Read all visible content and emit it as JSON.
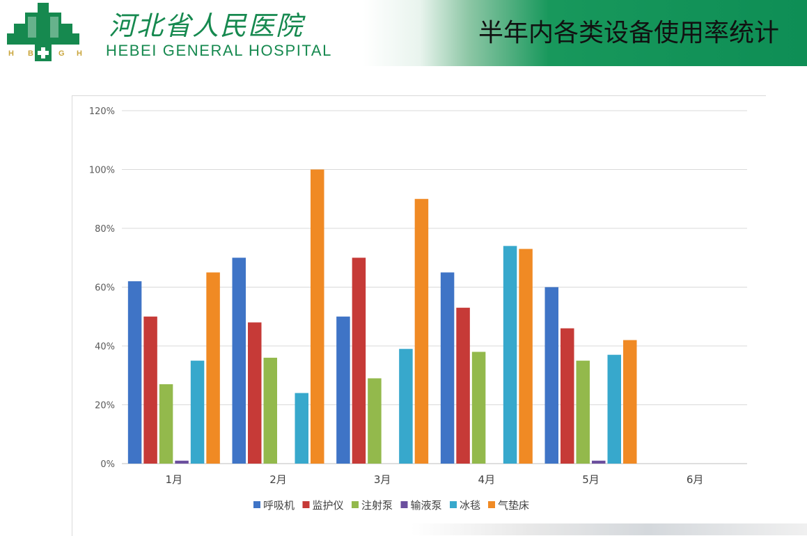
{
  "header": {
    "logo_cn": "河北省人民医院",
    "logo_en": "HEBEI GENERAL HOSPITAL",
    "logo_letters": [
      "H",
      "B",
      "G",
      "H"
    ],
    "title": "半年内各类设备使用率统计"
  },
  "chart_data": {
    "type": "bar",
    "title": "",
    "xlabel": "",
    "ylabel": "",
    "categories": [
      "1月",
      "2月",
      "3月",
      "4月",
      "5月",
      "6月"
    ],
    "ylim": [
      0,
      1.2
    ],
    "yticks": [
      "0%",
      "20%",
      "40%",
      "60%",
      "80%",
      "100%",
      "120%"
    ],
    "grid": true,
    "legend_position": "bottom",
    "series": [
      {
        "name": "呼吸机",
        "color": "#3f74c6",
        "values": [
          0.62,
          0.7,
          0.5,
          0.65,
          0.6,
          null
        ]
      },
      {
        "name": "监护仪",
        "color": "#c63a37",
        "values": [
          0.5,
          0.48,
          0.7,
          0.53,
          0.46,
          null
        ]
      },
      {
        "name": "注射泵",
        "color": "#93b94c",
        "values": [
          0.27,
          0.36,
          0.29,
          0.38,
          0.35,
          null
        ]
      },
      {
        "name": "输液泵",
        "color": "#6b4f9e",
        "values": [
          0.01,
          0.0,
          0.0,
          0.0,
          0.01,
          null
        ]
      },
      {
        "name": "冰毯",
        "color": "#37a8cc",
        "values": [
          0.35,
          0.24,
          0.39,
          0.74,
          0.37,
          null
        ]
      },
      {
        "name": "气垫床",
        "color": "#f08a24",
        "values": [
          0.65,
          1.0,
          0.9,
          0.73,
          0.42,
          null
        ]
      }
    ]
  }
}
